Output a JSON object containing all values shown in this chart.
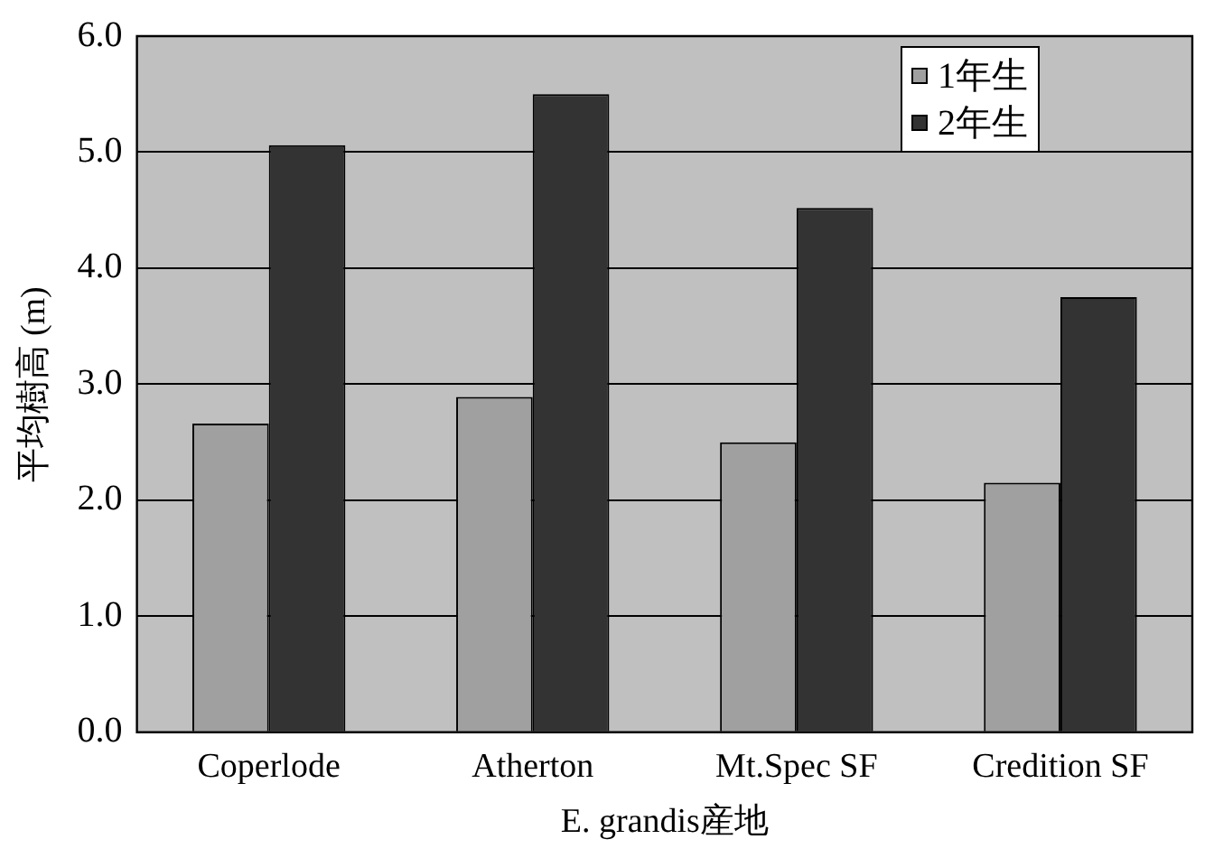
{
  "chart_data": {
    "type": "bar",
    "xlabel": "E. grandis産地",
    "ylabel": "平均樹高 (m)",
    "categories": [
      "Coperlode",
      "Atherton",
      "Mt.Spec SF",
      "Credition SF"
    ],
    "series": [
      {
        "name": "1年生",
        "color": "#a0a0a0",
        "values": [
          2.66,
          2.89,
          2.5,
          2.15
        ]
      },
      {
        "name": "2年生",
        "color": "#333333",
        "values": [
          5.06,
          5.5,
          4.52,
          3.75
        ]
      }
    ],
    "ylim": [
      0,
      6
    ],
    "yticks": [
      {
        "value": 0,
        "label": "0.0"
      },
      {
        "value": 1,
        "label": "1.0"
      },
      {
        "value": 2,
        "label": "2.0"
      },
      {
        "value": 3,
        "label": "3.0"
      },
      {
        "value": 4,
        "label": "4.0"
      },
      {
        "value": 5,
        "label": "5.0"
      },
      {
        "value": 6,
        "label": "6.0"
      }
    ],
    "grid": "y",
    "legend": "top right"
  }
}
